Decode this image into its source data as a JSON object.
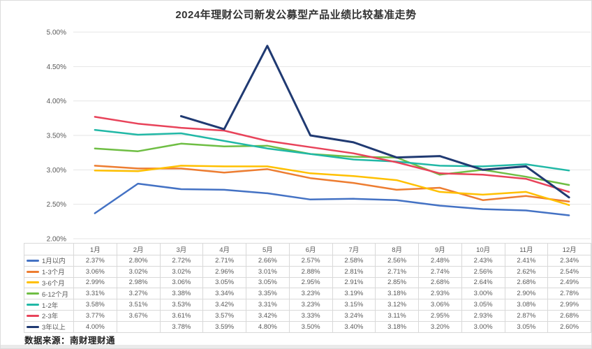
{
  "page": {
    "title": "2024年理财公司新发公募型产品业绩比较基准走势",
    "footer": "数据来源：南财理财通"
  },
  "chart_data": {
    "type": "line",
    "title": "2024年理财公司新发公募型产品业绩比较基准走势",
    "xlabel": "",
    "ylabel": "",
    "categories": [
      "1月",
      "2月",
      "3月",
      "4月",
      "5月",
      "6月",
      "7月",
      "8月",
      "9月",
      "10月",
      "11月",
      "12月"
    ],
    "ylim": [
      2.0,
      5.0
    ],
    "ytick_step": 0.5,
    "yticks": [
      {
        "value": 5.0,
        "label": "5.00%"
      },
      {
        "value": 4.5,
        "label": "4.50%"
      },
      {
        "value": 4.0,
        "label": "4.00%"
      },
      {
        "value": 3.5,
        "label": "3.50%"
      },
      {
        "value": 3.0,
        "label": "3.00%"
      },
      {
        "value": 2.5,
        "label": "2.50%"
      },
      {
        "value": 2.0,
        "label": "2.00%"
      }
    ],
    "grid": true,
    "legend_position": "table-left-column",
    "series": [
      {
        "name": "1月以内",
        "color": "#4472C4",
        "values": [
          2.37,
          2.8,
          2.72,
          2.71,
          2.66,
          2.57,
          2.58,
          2.56,
          2.48,
          2.43,
          2.41,
          2.34
        ],
        "cells": [
          "2.37%",
          "2.80%",
          "2.72%",
          "2.71%",
          "2.66%",
          "2.57%",
          "2.58%",
          "2.56%",
          "2.48%",
          "2.43%",
          "2.41%",
          "2.34%"
        ]
      },
      {
        "name": "1-3个月",
        "color": "#ED7D31",
        "values": [
          3.06,
          3.02,
          3.02,
          2.96,
          3.01,
          2.88,
          2.81,
          2.71,
          2.74,
          2.56,
          2.62,
          2.54
        ],
        "cells": [
          "3.06%",
          "3.02%",
          "3.02%",
          "2.96%",
          "3.01%",
          "2.88%",
          "2.81%",
          "2.71%",
          "2.74%",
          "2.56%",
          "2.62%",
          "2.54%"
        ]
      },
      {
        "name": "3-6个月",
        "color": "#FFC000",
        "values": [
          2.99,
          2.98,
          3.06,
          3.05,
          3.05,
          2.95,
          2.91,
          2.85,
          2.68,
          2.64,
          2.68,
          2.49
        ],
        "cells": [
          "2.99%",
          "2.98%",
          "3.06%",
          "3.05%",
          "3.05%",
          "2.95%",
          "2.91%",
          "2.85%",
          "2.68%",
          "2.64%",
          "2.68%",
          "2.49%"
        ]
      },
      {
        "name": "6-12个月",
        "color": "#6FBE44",
        "values": [
          3.31,
          3.27,
          3.38,
          3.34,
          3.35,
          3.23,
          3.19,
          3.18,
          2.93,
          3.0,
          2.9,
          2.78
        ],
        "cells": [
          "3.31%",
          "3.27%",
          "3.38%",
          "3.34%",
          "3.35%",
          "3.23%",
          "3.19%",
          "3.18%",
          "2.93%",
          "3.00%",
          "2.90%",
          "2.78%"
        ]
      },
      {
        "name": "1-2年",
        "color": "#21B8A6",
        "values": [
          3.58,
          3.51,
          3.53,
          3.42,
          3.31,
          3.23,
          3.15,
          3.12,
          3.06,
          3.05,
          3.08,
          2.99
        ],
        "cells": [
          "3.58%",
          "3.51%",
          "3.53%",
          "3.42%",
          "3.31%",
          "3.23%",
          "3.15%",
          "3.12%",
          "3.06%",
          "3.05%",
          "3.08%",
          "2.99%"
        ]
      },
      {
        "name": "2-3年",
        "color": "#E8435A",
        "values": [
          3.77,
          3.67,
          3.61,
          3.57,
          3.42,
          3.33,
          3.24,
          3.11,
          2.95,
          2.93,
          2.87,
          2.68
        ],
        "cells": [
          "3.77%",
          "3.67%",
          "3.61%",
          "3.57%",
          "3.42%",
          "3.33%",
          "3.24%",
          "3.11%",
          "2.95%",
          "2.93%",
          "2.87%",
          "2.68%"
        ]
      },
      {
        "name": "3年以上",
        "color": "#203A72",
        "values": [
          4.0,
          null,
          3.78,
          3.59,
          4.8,
          3.5,
          3.4,
          3.18,
          3.2,
          3.0,
          3.05,
          2.6
        ],
        "cells": [
          "4.00%",
          "",
          "3.78%",
          "3.59%",
          "4.80%",
          "3.50%",
          "3.40%",
          "3.18%",
          "3.20%",
          "3.00%",
          "3.05%",
          "2.60%"
        ]
      }
    ]
  },
  "style": {
    "grid_color": "#E5E5E5",
    "axis_text_color": "#595959",
    "table_border_color": "#D9D9D9"
  }
}
